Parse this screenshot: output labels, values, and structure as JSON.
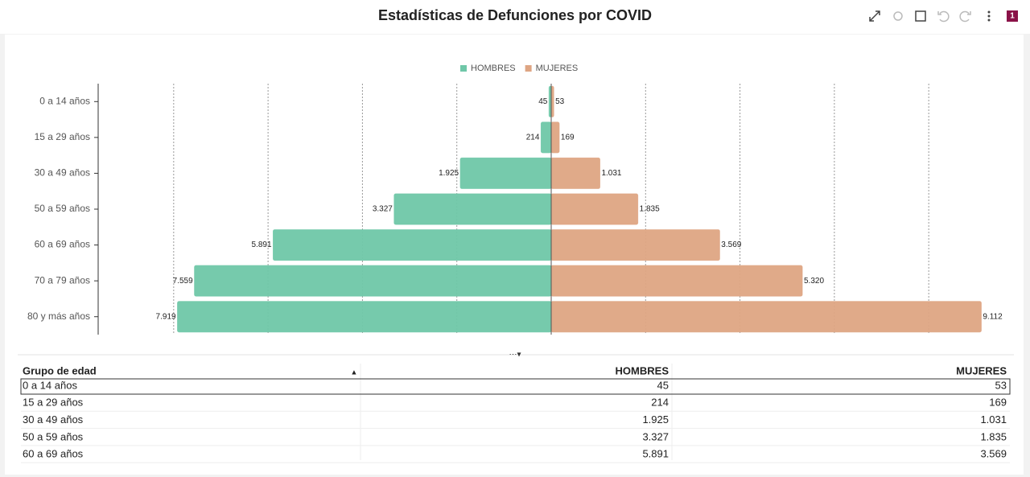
{
  "header": {
    "title": "Estadísticas de Defunciones por COVID",
    "badge": "1"
  },
  "chart_data": {
    "type": "pyramid",
    "categories": [
      "0 a 14 años",
      "15 a 29 años",
      "30 a 49 años",
      "50 a 59 años",
      "60 a 69 años",
      "70 a 79 años",
      "80 y más años"
    ],
    "series": [
      {
        "name": "HOMBRES",
        "color": "#6fc7a8",
        "values": [
          45,
          214,
          1925,
          3327,
          5891,
          7559,
          7919
        ],
        "value_labels": [
          "45",
          "214",
          "1.925",
          "3.327",
          "5.891",
          "7.559",
          "7.919"
        ]
      },
      {
        "name": "MUJERES",
        "color": "#dea583",
        "values": [
          53,
          169,
          1031,
          1835,
          3569,
          5320,
          9112
        ],
        "value_labels": [
          "53",
          "169",
          "1.031",
          "1.835",
          "3.569",
          "5.320",
          "9.112"
        ]
      }
    ],
    "xlim": [
      -9600,
      9600
    ],
    "xticks": [
      -8000,
      -6000,
      -4000,
      -2000,
      0,
      2000,
      4000,
      6000,
      8000
    ],
    "grid": true,
    "legend": "top"
  },
  "table": {
    "columns": [
      "Grupo de edad",
      "HOMBRES",
      "MUJERES"
    ],
    "rows": [
      [
        "0 a 14 años",
        "45",
        "53"
      ],
      [
        "15 a 29 años",
        "214",
        "169"
      ],
      [
        "30 a 49 años",
        "1.925",
        "1.031"
      ],
      [
        "50 a 59 años",
        "3.327",
        "1.835"
      ],
      [
        "60 a 69 años",
        "5.891",
        "3.569"
      ]
    ]
  }
}
